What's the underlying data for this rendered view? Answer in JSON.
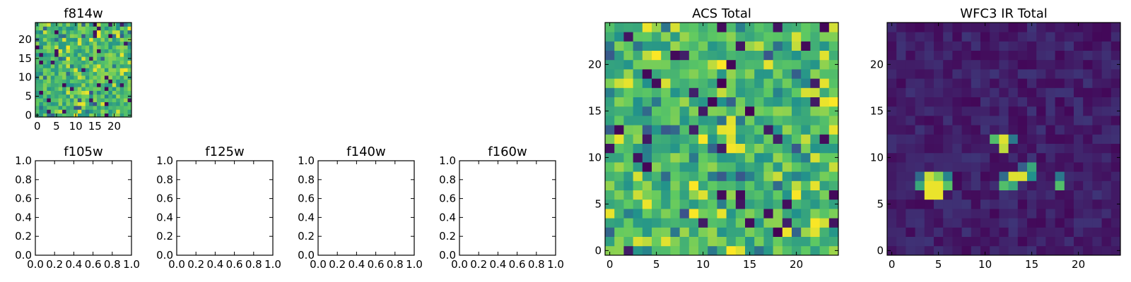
{
  "colormap": [
    "#440154",
    "#3b528b",
    "#21918c",
    "#5ec962",
    "#fde725"
  ],
  "chart_data": [
    {
      "type": "heatmap",
      "id": "f814w",
      "title": "f814w",
      "xticks": [
        "0",
        "5",
        "10",
        "15",
        "20"
      ],
      "yticks": [
        "0",
        "5",
        "10",
        "15",
        "20"
      ],
      "xlim": [
        -0.5,
        24.5
      ],
      "ylim": [
        -0.5,
        24.5
      ],
      "grid_size": 25,
      "seed": 11,
      "background": "acs"
    },
    {
      "type": "empty",
      "id": "f105w",
      "title": "f105w",
      "xticks": [
        "0.0",
        "0.2",
        "0.4",
        "0.6",
        "0.8",
        "1.0"
      ],
      "yticks": [
        "0.0",
        "0.2",
        "0.4",
        "0.6",
        "0.8",
        "1.0"
      ],
      "xlim": [
        0,
        1
      ],
      "ylim": [
        0,
        1
      ]
    },
    {
      "type": "empty",
      "id": "f125w",
      "title": "f125w",
      "xticks": [
        "0.0",
        "0.2",
        "0.4",
        "0.6",
        "0.8",
        "1.0"
      ],
      "yticks": [
        "0.0",
        "0.2",
        "0.4",
        "0.6",
        "0.8",
        "1.0"
      ],
      "xlim": [
        0,
        1
      ],
      "ylim": [
        0,
        1
      ]
    },
    {
      "type": "empty",
      "id": "f140w",
      "title": "f140w",
      "xticks": [
        "0.0",
        "0.2",
        "0.4",
        "0.6",
        "0.8",
        "1.0"
      ],
      "yticks": [
        "0.0",
        "0.2",
        "0.4",
        "0.6",
        "0.8",
        "1.0"
      ],
      "xlim": [
        0,
        1
      ],
      "ylim": [
        0,
        1
      ]
    },
    {
      "type": "empty",
      "id": "f160w",
      "title": "f160w",
      "xticks": [
        "0.0",
        "0.2",
        "0.4",
        "0.6",
        "0.8",
        "1.0"
      ],
      "yticks": [
        "0.0",
        "0.2",
        "0.4",
        "0.6",
        "0.8",
        "1.0"
      ],
      "xlim": [
        0,
        1
      ],
      "ylim": [
        0,
        1
      ]
    },
    {
      "type": "heatmap",
      "id": "acs-total",
      "title": "ACS Total",
      "xticks": [
        "0",
        "5",
        "10",
        "15",
        "20"
      ],
      "yticks": [
        "0",
        "5",
        "10",
        "15",
        "20"
      ],
      "xlim": [
        -0.5,
        24.5
      ],
      "ylim": [
        -0.5,
        24.5
      ],
      "grid_size": 25,
      "seed": 7,
      "background": "acs"
    },
    {
      "type": "heatmap",
      "id": "wfc3-ir-total",
      "title": "WFC3 IR Total",
      "xticks": [
        "0",
        "5",
        "10",
        "15",
        "20"
      ],
      "yticks": [
        "0",
        "5",
        "10",
        "15",
        "20"
      ],
      "xlim": [
        -0.5,
        24.5
      ],
      "ylim": [
        -0.5,
        24.5
      ],
      "grid_size": 25,
      "seed": 3,
      "background": "ir",
      "hotspots": [
        {
          "x": 4,
          "y": 7,
          "v": 0.97
        },
        {
          "x": 5,
          "y": 7,
          "v": 0.97
        },
        {
          "x": 4,
          "y": 6,
          "v": 0.97
        },
        {
          "x": 5,
          "y": 6,
          "v": 0.97
        },
        {
          "x": 4,
          "y": 8,
          "v": 0.92
        },
        {
          "x": 5,
          "y": 8,
          "v": 0.8
        },
        {
          "x": 3,
          "y": 7,
          "v": 0.6
        },
        {
          "x": 6,
          "y": 7,
          "v": 0.72
        },
        {
          "x": 3,
          "y": 8,
          "v": 0.35
        },
        {
          "x": 6,
          "y": 8,
          "v": 0.45
        },
        {
          "x": 12,
          "y": 12,
          "v": 0.95
        },
        {
          "x": 12,
          "y": 11,
          "v": 0.9
        },
        {
          "x": 11,
          "y": 12,
          "v": 0.7
        },
        {
          "x": 13,
          "y": 12,
          "v": 0.4
        },
        {
          "x": 13,
          "y": 8,
          "v": 0.95
        },
        {
          "x": 14,
          "y": 8,
          "v": 0.95
        },
        {
          "x": 13,
          "y": 7,
          "v": 0.6
        },
        {
          "x": 12,
          "y": 7,
          "v": 0.7
        },
        {
          "x": 12,
          "y": 8,
          "v": 0.35
        },
        {
          "x": 15,
          "y": 9,
          "v": 0.6
        },
        {
          "x": 15,
          "y": 8,
          "v": 0.5
        },
        {
          "x": 14,
          "y": 9,
          "v": 0.3
        },
        {
          "x": 18,
          "y": 7,
          "v": 0.7
        },
        {
          "x": 18,
          "y": 8,
          "v": 0.4
        }
      ]
    }
  ]
}
